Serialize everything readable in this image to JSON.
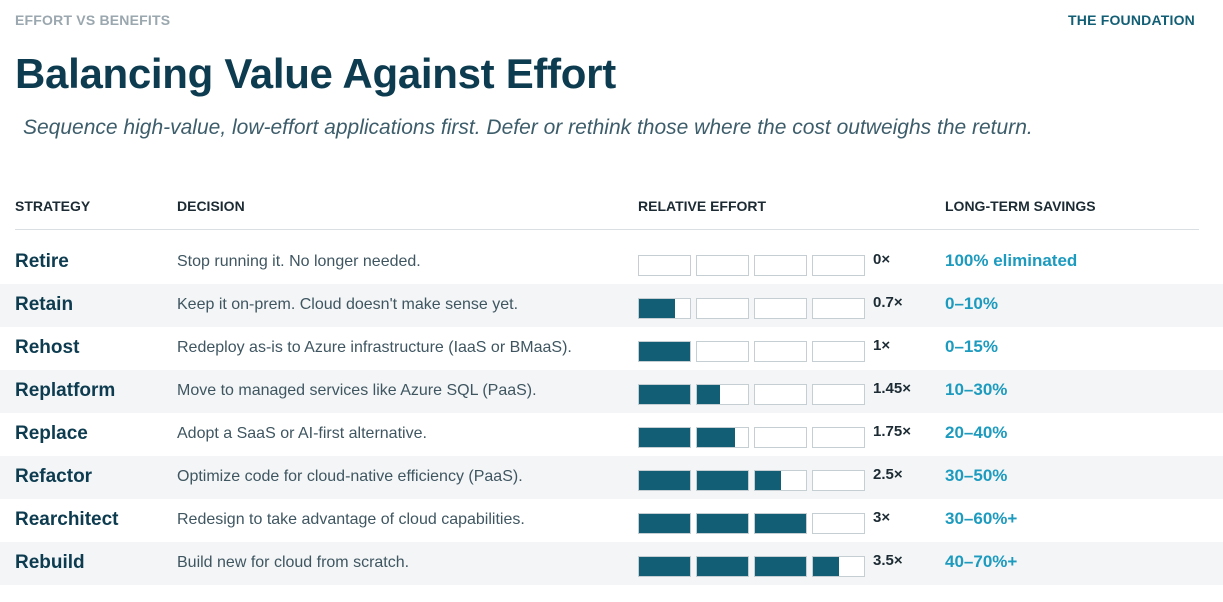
{
  "header": {
    "eyebrow": "EFFORT VS BENEFITS",
    "section_tag": "THE FOUNDATION",
    "title": "Balancing Value Against Effort",
    "subtitle": "Sequence high-value, low-effort applications first. Defer or rethink those where the cost outweighs the return."
  },
  "table": {
    "columns": {
      "strategy": "STRATEGY",
      "decision": "DECISION",
      "effort": "RELATIVE EFFORT",
      "savings": "LONG-TERM SAVINGS"
    },
    "bar_max": 4,
    "colors": {
      "bar_fill": "#115e75",
      "savings_text": "#1d9bbf"
    },
    "rows": [
      {
        "strategy": "Retire",
        "decision": "Stop running it. No longer needed.",
        "effort": 0,
        "effort_label": "0×",
        "savings": "100% eliminated"
      },
      {
        "strategy": "Retain",
        "decision": "Keep it on-prem. Cloud doesn't make sense yet.",
        "effort": 0.7,
        "effort_label": "0.7×",
        "savings": "0–10%"
      },
      {
        "strategy": "Rehost",
        "decision": "Redeploy as-is to Azure infrastructure (IaaS or BMaaS).",
        "effort": 1,
        "effort_label": "1×",
        "savings": "0–15%"
      },
      {
        "strategy": "Replatform",
        "decision": "Move to managed services like Azure SQL (PaaS).",
        "effort": 1.45,
        "effort_label": "1.45×",
        "savings": "10–30%"
      },
      {
        "strategy": "Replace",
        "decision": "Adopt a SaaS or AI-first alternative.",
        "effort": 1.75,
        "effort_label": "1.75×",
        "savings": "20–40%"
      },
      {
        "strategy": "Refactor",
        "decision": "Optimize code for cloud-native efficiency (PaaS).",
        "effort": 2.5,
        "effort_label": "2.5×",
        "savings": "30–50%"
      },
      {
        "strategy": "Rearchitect",
        "decision": "Redesign to take advantage of cloud capabilities.",
        "effort": 3,
        "effort_label": "3×",
        "savings": "30–60%+"
      },
      {
        "strategy": "Rebuild",
        "decision": "Build new for cloud from scratch.",
        "effort": 3.5,
        "effort_label": "3.5×",
        "savings": "40–70%+"
      }
    ]
  }
}
